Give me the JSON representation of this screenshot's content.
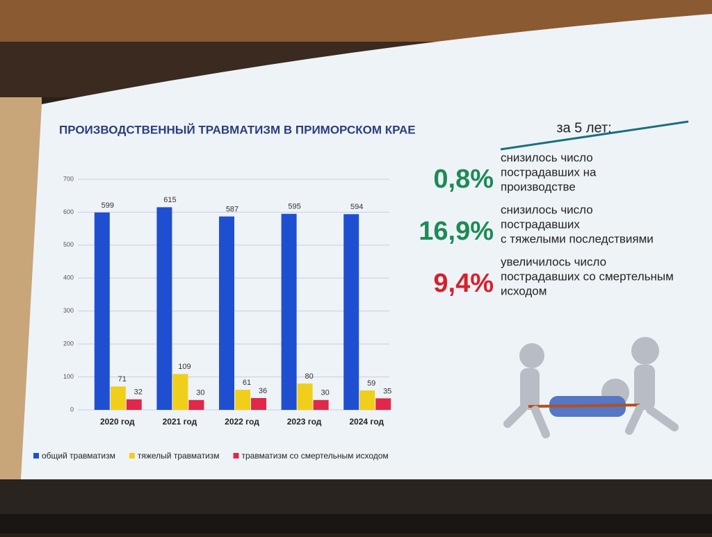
{
  "chart_data": {
    "type": "bar",
    "title": "ПРОИЗВОДСТВЕННЫЙ ТРАВМАТИЗМ В ПРИМОРСКОМ КРАЕ",
    "categories": [
      "2020 год",
      "2021 год",
      "2022 год",
      "2023 год",
      "2024 год"
    ],
    "series": [
      {
        "name": "общий травматизм",
        "color": "#1f4fd1",
        "values": [
          599,
          615,
          587,
          595,
          594
        ]
      },
      {
        "name": "тяжелый травматизм",
        "color": "#f0cf1a",
        "values": [
          71,
          109,
          61,
          80,
          59
        ]
      },
      {
        "name": "травматизм со смертельным исходом",
        "color": "#e0284a",
        "values": [
          32,
          30,
          36,
          30,
          35
        ]
      }
    ],
    "ylim": [
      0,
      700
    ],
    "yticks": [
      0,
      100,
      200,
      300,
      400,
      500,
      600,
      700
    ],
    "grid": true
  },
  "side": {
    "heading": "за 5 лет:",
    "stats": [
      {
        "value": "0,8%",
        "color": "#1e8a55",
        "lines": [
          "снизилось число",
          "пострадавших на",
          "производстве"
        ]
      },
      {
        "value": "16,9%",
        "color": "#1e8a55",
        "lines": [
          "снизилось число",
          "пострадавших",
          "с тяжелыми последствиями"
        ]
      },
      {
        "value": "9,4%",
        "color": "#d81f2a",
        "lines": [
          "увеличилось число",
          "пострадавших со смертельным",
          "исходом"
        ]
      }
    ]
  }
}
